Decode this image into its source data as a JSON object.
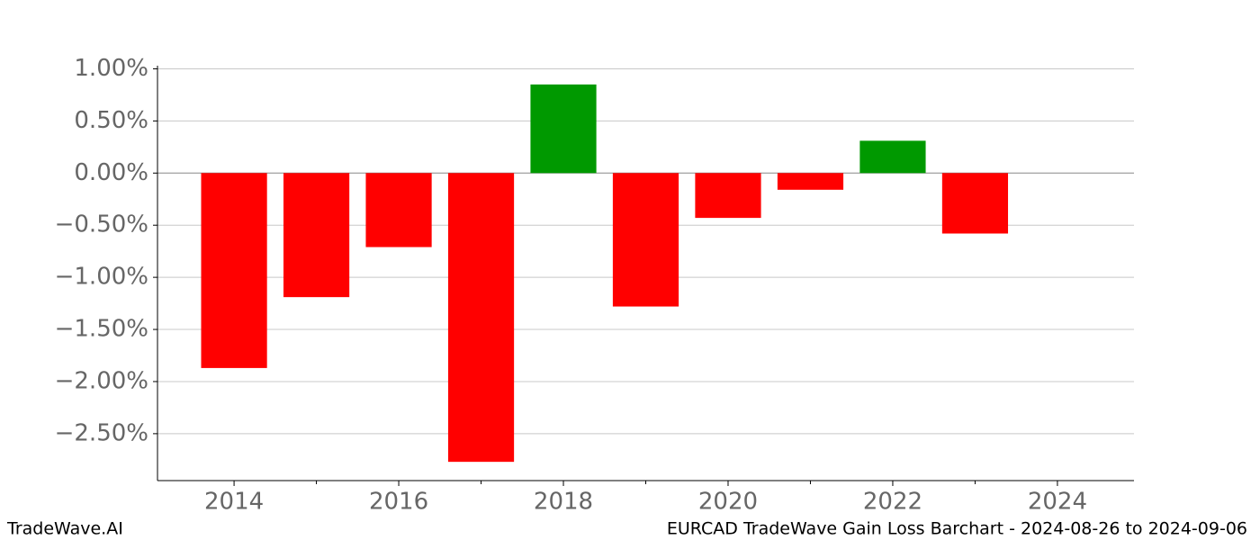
{
  "chart_data": {
    "type": "bar",
    "x": [
      2014,
      2015,
      2016,
      2017,
      2018,
      2019,
      2020,
      2021,
      2022,
      2023
    ],
    "values": [
      -1.87,
      -1.19,
      -0.71,
      -2.77,
      0.85,
      -1.28,
      -0.43,
      -0.16,
      0.31,
      -0.58
    ],
    "positive_color": "#009900",
    "negative_color": "#ff0000",
    "xlim": [
      2013.07,
      2024.93
    ],
    "xticks": [
      2014,
      2016,
      2018,
      2020,
      2022,
      2024
    ],
    "xticks_minor": [
      2015,
      2017,
      2019,
      2021,
      2023
    ],
    "ylim": [
      -2.95,
      1.03
    ],
    "yticks": [
      {
        "value": 1,
        "label": "1.00%"
      },
      {
        "value": 0.5,
        "label": "0.50%"
      },
      {
        "value": 0,
        "label": "0.00%"
      },
      {
        "value": -0.5,
        "label": "−0.50%"
      },
      {
        "value": -1,
        "label": "−1.00%"
      },
      {
        "value": -1.5,
        "label": "−1.50%"
      },
      {
        "value": -2,
        "label": "−2.00%"
      },
      {
        "value": -2.5,
        "label": "−2.50%"
      }
    ],
    "grid": true,
    "footer_left": "TradeWave.AI",
    "footer_right": "EURCAD TradeWave Gain Loss Barchart - 2024-08-26 to 2024-09-06"
  }
}
